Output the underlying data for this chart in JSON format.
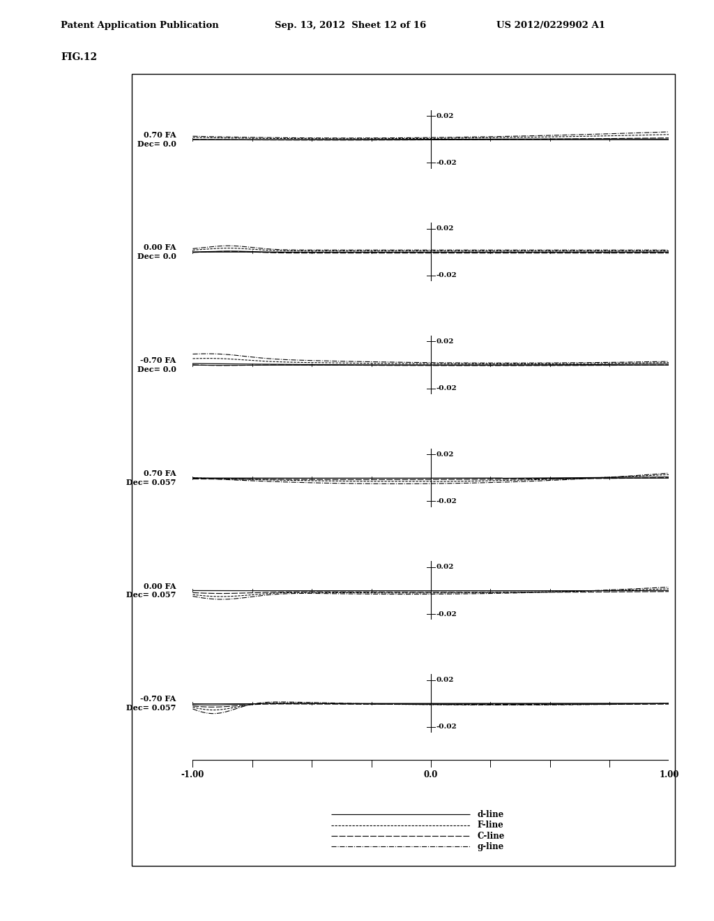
{
  "header_left": "Patent Application Publication",
  "header_mid": "Sep. 13, 2012  Sheet 12 of 16",
  "header_right": "US 2012/0229902 A1",
  "fig_label": "FIG.12",
  "subplots": [
    {
      "label_line1": "0.70 FA",
      "label_line2": "Dec= 0.0"
    },
    {
      "label_line1": "0.00 FA",
      "label_line2": "Dec= 0.0"
    },
    {
      "label_line1": "-0.70 FA",
      "label_line2": "Dec= 0.0"
    },
    {
      "label_line1": "0.70 FA",
      "label_line2": "Dec= 0.057"
    },
    {
      "label_line1": "0.00 FA",
      "label_line2": "Dec= 0.057"
    },
    {
      "label_line1": "-0.70 FA",
      "label_line2": "Dec= 0.057"
    }
  ],
  "xtick_positions": [
    -1.0,
    -0.75,
    -0.5,
    -0.25,
    0.0,
    0.25,
    0.5,
    0.75,
    1.0
  ],
  "xtick_labels": [
    "-1.00",
    "",
    "",
    "",
    "0.0",
    "",
    "",
    "",
    "1.00"
  ],
  "legend_items": [
    {
      "label": "d-line",
      "ls": "-"
    },
    {
      "label": "F-line",
      "ls": "--"
    },
    {
      "label": "C-line",
      "ls": "longdash"
    },
    {
      "label": "g-line",
      "ls": "dashdot"
    }
  ],
  "bg_color": "#ffffff"
}
